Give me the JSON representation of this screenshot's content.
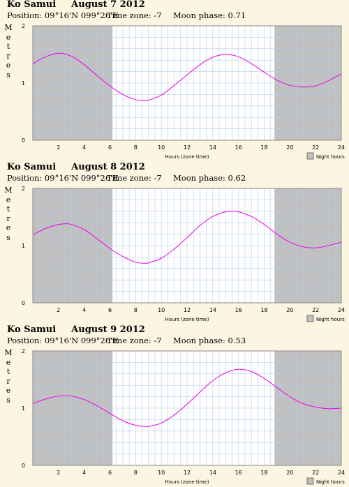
{
  "chart_data": [
    {
      "type": "line",
      "location": "Ko Samui",
      "date": "August 7 2012",
      "position": "Position: 09°16'N 099°26'E",
      "timezone": "Time zone: -7",
      "moon_phase": "Moon phase: 0.71",
      "ylabel": "Metres",
      "xlabel": "Hours (zone time)",
      "legend": "Night hours",
      "xlim": [
        0,
        24
      ],
      "ylim": [
        0,
        2
      ],
      "x_ticks": [
        "2",
        "4",
        "6",
        "8",
        "10",
        "12",
        "14",
        "16",
        "18",
        "20",
        "22",
        "24"
      ],
      "y_ticks": [
        "0",
        "1",
        "2"
      ],
      "night_hours": [
        [
          0,
          6.2
        ],
        [
          18.8,
          24
        ]
      ],
      "series": [
        {
          "x": [
            0,
            1,
            2,
            3,
            4,
            5,
            6,
            7,
            8,
            8.6,
            9,
            10,
            11,
            12,
            13,
            14,
            15,
            16,
            17,
            18,
            19,
            20,
            21,
            22,
            23,
            24
          ],
          "y": [
            1.34,
            1.46,
            1.52,
            1.47,
            1.32,
            1.13,
            0.95,
            0.8,
            0.71,
            0.69,
            0.7,
            0.79,
            0.96,
            1.14,
            1.32,
            1.45,
            1.5,
            1.46,
            1.34,
            1.19,
            1.05,
            0.96,
            0.93,
            0.95,
            1.04,
            1.16
          ]
        }
      ]
    },
    {
      "type": "line",
      "location": "Ko Samui",
      "date": "August 8 2012",
      "position": "Position: 09°16'N 099°26'E",
      "timezone": "Time zone: -7",
      "moon_phase": "Moon phase: 0.62",
      "ylabel": "Metres",
      "xlabel": "Hours (zone time)",
      "legend": "Night hours",
      "xlim": [
        0,
        24
      ],
      "ylim": [
        0,
        2
      ],
      "x_ticks": [
        "2",
        "4",
        "6",
        "8",
        "10",
        "12",
        "14",
        "16",
        "18",
        "20",
        "22",
        "24"
      ],
      "y_ticks": [
        "0",
        "1",
        "2"
      ],
      "night_hours": [
        [
          0,
          6.2
        ],
        [
          18.8,
          24
        ]
      ],
      "series": [
        {
          "x": [
            0,
            1,
            2,
            2.6,
            3,
            4,
            5,
            6,
            7,
            8,
            8.8,
            9,
            10,
            11,
            12,
            13,
            14,
            15,
            15.6,
            16,
            17,
            18,
            19,
            20,
            21,
            22,
            23,
            24
          ],
          "y": [
            1.19,
            1.3,
            1.37,
            1.38,
            1.37,
            1.28,
            1.12,
            0.95,
            0.81,
            0.71,
            0.69,
            0.7,
            0.78,
            0.94,
            1.14,
            1.35,
            1.51,
            1.59,
            1.6,
            1.59,
            1.51,
            1.37,
            1.2,
            1.06,
            0.98,
            0.96,
            1.0,
            1.06
          ]
        }
      ]
    },
    {
      "type": "line",
      "location": "Ko Samui",
      "date": "August 9 2012",
      "position": "Position: 09°16'N 099°26'E",
      "timezone": "Time zone: -7",
      "moon_phase": "Moon phase: 0.53",
      "ylabel": "Metres",
      "xlabel": "Hours (zone time)",
      "legend": "Night hours",
      "xlim": [
        0,
        24
      ],
      "ylim": [
        0,
        2
      ],
      "x_ticks": [
        "2",
        "4",
        "6",
        "8",
        "10",
        "12",
        "14",
        "16",
        "18",
        "20",
        "22",
        "24"
      ],
      "y_ticks": [
        "0",
        "1",
        "2"
      ],
      "night_hours": [
        [
          0,
          6.2
        ],
        [
          18.8,
          24
        ]
      ],
      "series": [
        {
          "x": [
            0,
            1,
            2,
            3,
            4,
            5,
            6,
            7,
            8,
            8.8,
            9,
            10,
            11,
            12,
            13,
            14,
            15,
            16,
            17,
            18,
            19,
            20,
            21,
            22,
            23,
            24
          ],
          "y": [
            1.08,
            1.16,
            1.21,
            1.21,
            1.15,
            1.04,
            0.91,
            0.78,
            0.7,
            0.68,
            0.68,
            0.74,
            0.88,
            1.07,
            1.28,
            1.48,
            1.62,
            1.68,
            1.64,
            1.52,
            1.36,
            1.2,
            1.08,
            1.02,
            0.99,
            1.0
          ]
        }
      ]
    }
  ]
}
